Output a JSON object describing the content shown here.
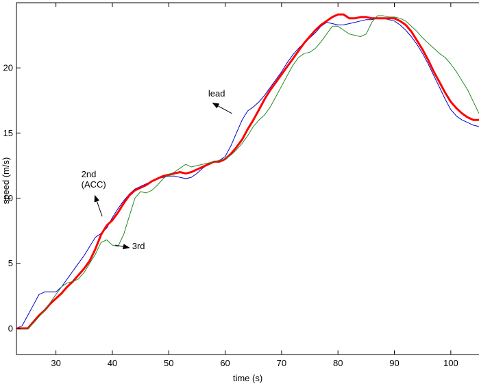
{
  "chart_data": {
    "type": "line",
    "title": "",
    "xlabel": "time (s)",
    "ylabel": "speed (m/s)",
    "xlim": [
      23,
      105
    ],
    "ylim": [
      -2,
      25
    ],
    "xticks": [
      30,
      40,
      50,
      60,
      70,
      80,
      90,
      100
    ],
    "yticks": [
      0,
      5,
      10,
      15,
      20
    ],
    "grid": false,
    "legend": "none",
    "series": [
      {
        "color": "#0000cc",
        "width": 1,
        "x": [
          23,
          24,
          25,
          26,
          27,
          28,
          29,
          30,
          31,
          32,
          33,
          34,
          35,
          36,
          37,
          38,
          39,
          40,
          41,
          42,
          43,
          44,
          45,
          46,
          47,
          48,
          49,
          50,
          51,
          52,
          53,
          54,
          55,
          56,
          57,
          58,
          59,
          60,
          61,
          62,
          63,
          64,
          65,
          66,
          67,
          68,
          69,
          70,
          71,
          72,
          73,
          74,
          75,
          76,
          77,
          78,
          79,
          80,
          81,
          82,
          83,
          84,
          85,
          86,
          87,
          88,
          89,
          90,
          91,
          92,
          93,
          94,
          95,
          96,
          97,
          98,
          99,
          100,
          101,
          102,
          103,
          104,
          105
        ],
        "y": [
          0,
          0.2,
          1.0,
          1.8,
          2.6,
          2.8,
          2.8,
          2.8,
          3.2,
          3.8,
          4.4,
          5.0,
          5.6,
          6.3,
          7.0,
          7.3,
          7.7,
          8.5,
          9.2,
          9.8,
          10.3,
          10.7,
          10.9,
          11.1,
          11.3,
          11.5,
          11.6,
          11.7,
          11.7,
          11.6,
          11.5,
          11.6,
          11.9,
          12.3,
          12.6,
          12.8,
          12.9,
          13.2,
          14.0,
          15.0,
          16.0,
          16.7,
          17.0,
          17.4,
          17.9,
          18.5,
          19.1,
          19.7,
          20.4,
          21.0,
          21.5,
          21.9,
          22.3,
          22.7,
          23.2,
          23.5,
          23.4,
          23.3,
          23.3,
          23.4,
          23.5,
          23.6,
          23.7,
          23.7,
          23.8,
          23.8,
          23.7,
          23.6,
          23.3,
          22.9,
          22.4,
          21.8,
          21.1,
          20.3,
          19.4,
          18.5,
          17.6,
          16.8,
          16.3,
          16.0,
          15.8,
          15.6,
          15.5
        ]
      },
      {
        "color": "#ff0000",
        "width": 3,
        "x": [
          23,
          24,
          25,
          26,
          27,
          28,
          29,
          30,
          31,
          32,
          33,
          34,
          35,
          36,
          37,
          38,
          39,
          40,
          41,
          42,
          43,
          44,
          45,
          46,
          47,
          48,
          49,
          50,
          51,
          52,
          53,
          54,
          55,
          56,
          57,
          58,
          59,
          60,
          61,
          62,
          63,
          64,
          65,
          66,
          67,
          68,
          69,
          70,
          71,
          72,
          73,
          74,
          75,
          76,
          77,
          78,
          79,
          80,
          81,
          82,
          83,
          84,
          85,
          86,
          87,
          88,
          89,
          90,
          91,
          92,
          93,
          94,
          95,
          96,
          97,
          98,
          99,
          100,
          101,
          102,
          103,
          104,
          105
        ],
        "y": [
          0,
          0,
          0,
          0.5,
          1.0,
          1.4,
          1.9,
          2.3,
          2.7,
          3.2,
          3.6,
          4.1,
          4.6,
          5.2,
          6.1,
          7.2,
          7.9,
          8.3,
          8.9,
          9.6,
          10.2,
          10.6,
          10.8,
          11.0,
          11.3,
          11.5,
          11.7,
          11.8,
          11.9,
          12.0,
          11.9,
          12.0,
          12.2,
          12.4,
          12.6,
          12.8,
          12.8,
          13.0,
          13.4,
          13.9,
          14.5,
          15.3,
          16.0,
          16.8,
          17.6,
          18.3,
          18.9,
          19.5,
          20.1,
          20.7,
          21.3,
          21.9,
          22.4,
          22.9,
          23.3,
          23.6,
          23.9,
          24.1,
          24.1,
          23.8,
          23.8,
          23.9,
          23.9,
          23.8,
          23.8,
          23.8,
          23.8,
          23.8,
          23.6,
          23.3,
          22.8,
          22.1,
          21.4,
          20.6,
          19.7,
          18.9,
          18.1,
          17.4,
          16.9,
          16.5,
          16.2,
          16.0,
          16.0
        ]
      },
      {
        "color": "#228b22",
        "width": 1,
        "x": [
          23,
          24,
          25,
          26,
          27,
          28,
          29,
          30,
          31,
          32,
          33,
          34,
          35,
          36,
          37,
          38,
          39,
          40,
          41,
          42,
          43,
          44,
          45,
          46,
          47,
          48,
          49,
          50,
          51,
          52,
          53,
          54,
          55,
          56,
          57,
          58,
          59,
          60,
          61,
          62,
          63,
          64,
          65,
          66,
          67,
          68,
          69,
          70,
          71,
          72,
          73,
          74,
          75,
          76,
          77,
          78,
          79,
          80,
          81,
          82,
          83,
          84,
          85,
          86,
          87,
          88,
          89,
          90,
          91,
          92,
          93,
          94,
          95,
          96,
          97,
          98,
          99,
          100,
          101,
          102,
          103,
          104,
          105
        ],
        "y": [
          0,
          0,
          0,
          0.4,
          0.9,
          1.4,
          2.0,
          2.6,
          3.2,
          3.5,
          3.6,
          3.8,
          4.3,
          5.0,
          5.7,
          6.6,
          6.8,
          6.4,
          6.3,
          7.2,
          8.6,
          10.0,
          10.5,
          10.4,
          10.6,
          11.0,
          11.5,
          11.8,
          12.0,
          12.3,
          12.6,
          12.4,
          12.5,
          12.6,
          12.7,
          12.8,
          12.9,
          13.0,
          13.3,
          13.7,
          14.2,
          14.8,
          15.5,
          16.0,
          16.4,
          17.0,
          17.8,
          18.6,
          19.4,
          20.2,
          20.8,
          21.1,
          21.2,
          21.5,
          22.0,
          22.6,
          23.2,
          23.2,
          22.9,
          22.6,
          22.5,
          22.4,
          22.6,
          23.5,
          24.0,
          24.0,
          23.9,
          23.9,
          23.8,
          23.6,
          23.2,
          22.8,
          22.3,
          21.9,
          21.5,
          21.1,
          20.8,
          20.3,
          19.7,
          19.0,
          18.3,
          17.4,
          16.5
        ]
      }
    ],
    "annotations": [
      {
        "lines": [
          "lead"
        ],
        "text_at": [
          57,
          17.8
        ],
        "arrow_from": [
          61.2,
          16.5
        ],
        "arrow_to": [
          57.8,
          17.3
        ]
      },
      {
        "lines": [
          "2nd",
          "(ACC)"
        ],
        "text_at": [
          34.5,
          11.6
        ],
        "arrow_from": [
          38.2,
          8.6
        ],
        "arrow_to": [
          36.9,
          10.2
        ]
      },
      {
        "lines": [
          "3rd"
        ],
        "text_at": [
          43.5,
          6.1
        ],
        "arrow_from": [
          40.5,
          6.4
        ],
        "arrow_to": [
          43.0,
          6.2
        ]
      }
    ]
  }
}
